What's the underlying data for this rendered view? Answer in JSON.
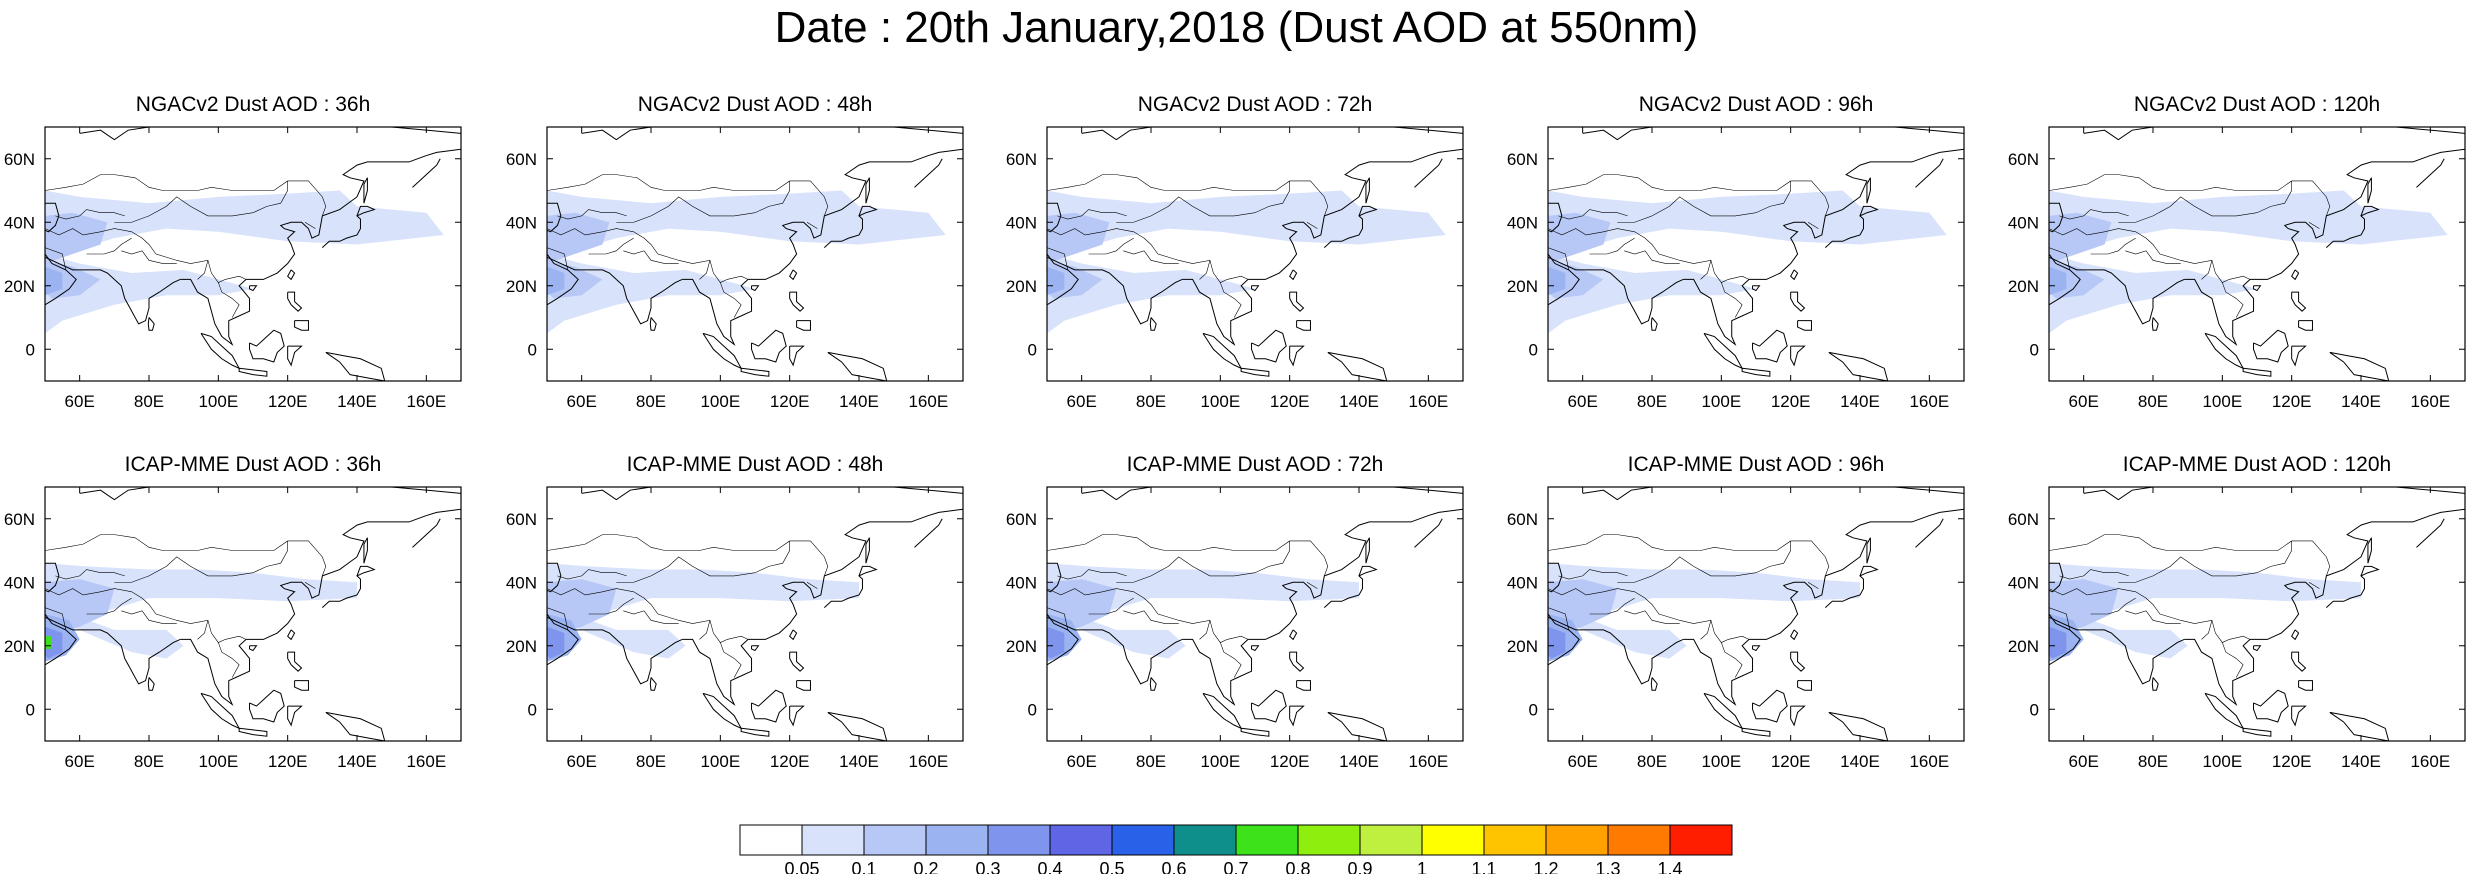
{
  "title": "Date : 20th January,2018 (Dust AOD at 550nm)",
  "panels": [
    {
      "id": "ngac-36",
      "title": "NGACv2 Dust AOD : 36h",
      "model": "NGACv2",
      "lead_time": "36h"
    },
    {
      "id": "ngac-48",
      "title": "NGACv2 Dust AOD : 48h",
      "model": "NGACv2",
      "lead_time": "48h"
    },
    {
      "id": "ngac-72",
      "title": "NGACv2 Dust AOD : 72h",
      "model": "NGACv2",
      "lead_time": "72h"
    },
    {
      "id": "ngac-96",
      "title": "NGACv2 Dust AOD : 96h",
      "model": "NGACv2",
      "lead_time": "96h"
    },
    {
      "id": "ngac-120",
      "title": "NGACv2 Dust AOD : 120h",
      "model": "NGACv2",
      "lead_time": "120h"
    },
    {
      "id": "icap-36",
      "title": "ICAP-MME Dust AOD : 36h",
      "model": "ICAP-MME",
      "lead_time": "36h"
    },
    {
      "id": "icap-48",
      "title": "ICAP-MME Dust AOD : 48h",
      "model": "ICAP-MME",
      "lead_time": "48h"
    },
    {
      "id": "icap-72",
      "title": "ICAP-MME Dust AOD : 72h",
      "model": "ICAP-MME",
      "lead_time": "72h"
    },
    {
      "id": "icap-96",
      "title": "ICAP-MME Dust AOD : 96h",
      "model": "ICAP-MME",
      "lead_time": "96h"
    },
    {
      "id": "icap-120",
      "title": "ICAP-MME Dust AOD : 120h",
      "model": "ICAP-MME",
      "lead_time": "120h"
    }
  ],
  "axes": {
    "x_ticks": [
      "60E",
      "80E",
      "100E",
      "120E",
      "140E",
      "160E"
    ],
    "y_ticks": [
      "60N",
      "40N",
      "20N",
      "0"
    ],
    "lon_range": [
      50,
      170
    ],
    "lat_range": [
      -10,
      70
    ]
  },
  "colorbar": {
    "labels": [
      "0.05",
      "0.1",
      "0.2",
      "0.3",
      "0.4",
      "0.5",
      "0.6",
      "0.7",
      "0.8",
      "0.9",
      "1",
      "1.1",
      "1.2",
      "1.3",
      "1.4"
    ],
    "colors": [
      "#ffffff",
      "#d8e2fb",
      "#b7c8f6",
      "#9bb3f1",
      "#7f94ec",
      "#5f66e6",
      "#2962e8",
      "#0f8f8c",
      "#3ee21b",
      "#8eee0e",
      "#bfef3f",
      "#ffff00",
      "#ffc400",
      "#ffa200",
      "#ff7a00",
      "#ff1e00"
    ]
  },
  "map_colors": {
    "coast": "#000000",
    "dust_low": "#d8e2fb",
    "dust_mid": "#b7c8f6",
    "dust_high": "#9bb3f1",
    "dust_peak": "#7f94ec",
    "dust_extreme": "#3ee21b"
  }
}
